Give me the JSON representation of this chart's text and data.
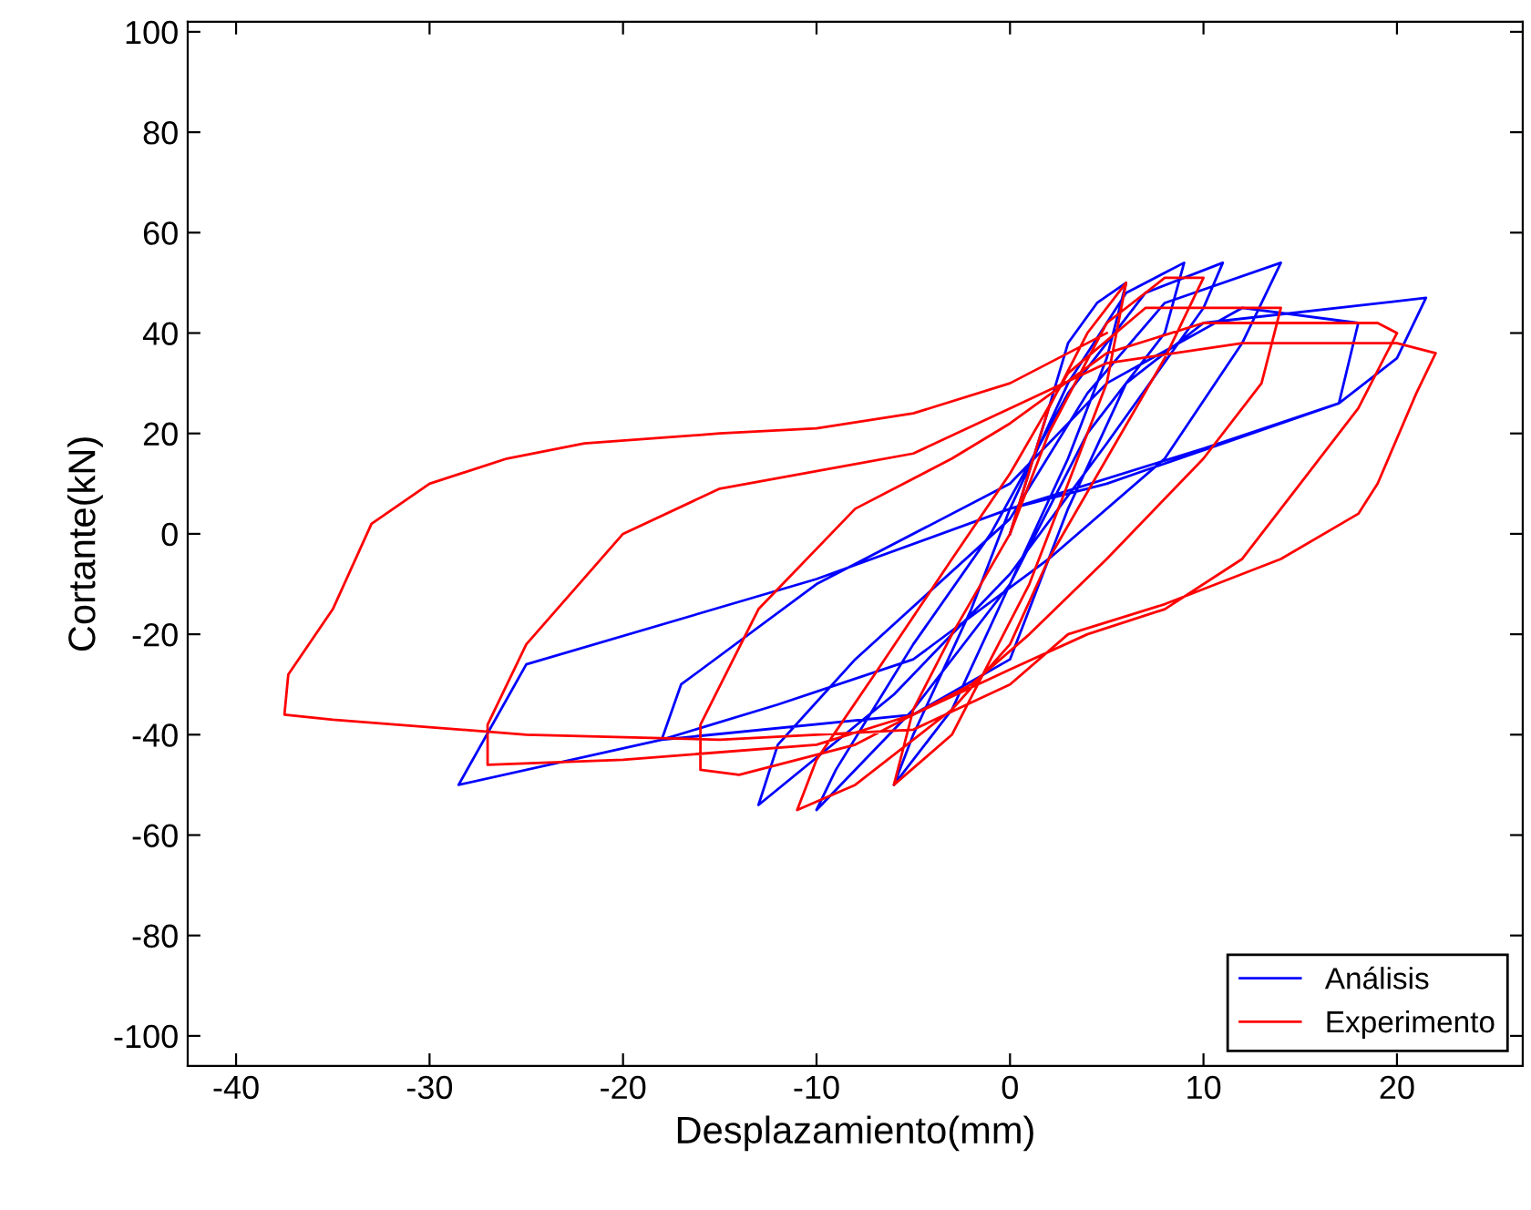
{
  "chart_data": {
    "type": "line",
    "xlabel": "Desplazamiento(mm)",
    "ylabel": "Cortante(kN)",
    "xlim": [
      -42.5,
      26.5
    ],
    "ylim": [
      -106,
      102
    ],
    "xticks": [
      -40,
      -30,
      -20,
      -10,
      0,
      10,
      20
    ],
    "yticks": [
      -100,
      -80,
      -60,
      -40,
      -20,
      0,
      20,
      40,
      60,
      80,
      100
    ],
    "grid": false,
    "legend": "bottom right",
    "marker": "none",
    "line_style": "solid",
    "series": [
      {
        "name": "Análisis",
        "color": "#0000ff",
        "x": [
          0,
          2,
          3,
          4.5,
          6,
          5,
          3,
          0,
          -3,
          -6,
          -5,
          -2,
          0,
          3,
          6,
          9,
          8,
          4,
          0,
          -5,
          -10,
          -9,
          -5,
          -1,
          3,
          7,
          11,
          10,
          5,
          0,
          -6,
          -13,
          -12,
          -8,
          0,
          4,
          8,
          14,
          12,
          8,
          2,
          -5,
          -12,
          -18,
          -17,
          -10,
          0,
          5,
          12,
          18,
          17,
          10,
          0,
          -10,
          -25,
          -28.5,
          -18,
          -5,
          0,
          3,
          6,
          10,
          21.5,
          20,
          17,
          5,
          0
        ],
        "values": [
          0,
          25,
          38,
          46,
          50,
          35,
          15,
          -10,
          -35,
          -50,
          -40,
          -15,
          5,
          30,
          48,
          54,
          40,
          20,
          -10,
          -35,
          -55,
          -47,
          -22,
          0,
          28,
          48,
          54,
          45,
          18,
          -8,
          -32,
          -54,
          -42,
          -25,
          3,
          28,
          46,
          54,
          38,
          15,
          -5,
          -25,
          -34,
          -41,
          -30,
          -10,
          10,
          30,
          45,
          42,
          26,
          17,
          5,
          -9,
          -26,
          -50,
          -41,
          -36,
          -25,
          5,
          30,
          42,
          47,
          35,
          26,
          10,
          5
        ]
      },
      {
        "name": "Experimento",
        "color": "#ff0000",
        "x": [
          0,
          2,
          4,
          6,
          5,
          3,
          1,
          -1,
          -3,
          -6,
          -5,
          -3,
          0,
          2,
          5,
          8,
          10,
          8,
          5,
          2,
          0,
          -3,
          -8,
          -11,
          -10,
          -7,
          -3,
          0,
          3,
          7,
          12,
          14,
          13,
          10,
          5,
          1,
          -2,
          -8,
          -14,
          -16,
          -16,
          -13,
          -8,
          -3,
          0,
          5,
          10,
          19,
          20,
          18,
          15,
          12,
          8,
          4,
          0,
          -5,
          -10,
          -20,
          -27,
          -27,
          -25,
          -20,
          -15,
          -5,
          0,
          5,
          12,
          20,
          22,
          21,
          19,
          18,
          14,
          8,
          3,
          0,
          -5,
          -15,
          -25,
          -35,
          -37.5,
          -37.3,
          -35,
          -33,
          -30,
          -26,
          -22,
          -15,
          -10,
          -5,
          0,
          5
        ],
        "values": [
          0,
          25,
          40,
          50,
          30,
          10,
          -10,
          -25,
          -40,
          -50,
          -35,
          -20,
          0,
          20,
          42,
          51,
          51,
          35,
          15,
          -5,
          -22,
          -35,
          -50,
          -55,
          -45,
          -28,
          -5,
          12,
          32,
          45,
          45,
          45,
          30,
          15,
          -5,
          -20,
          -30,
          -42,
          -48,
          -47,
          -38,
          -15,
          5,
          15,
          22,
          36,
          42,
          42,
          40,
          25,
          10,
          -5,
          -15,
          -20,
          -27,
          -36,
          -42,
          -45,
          -46,
          -38,
          -22,
          0,
          9,
          16,
          25,
          34,
          38,
          38,
          36,
          28,
          10,
          4,
          -5,
          -14,
          -20,
          -30,
          -39,
          -41,
          -40,
          -37,
          -36,
          -28,
          -15,
          2,
          10,
          15,
          18,
          20,
          21,
          24,
          30,
          40
        ]
      }
    ]
  }
}
